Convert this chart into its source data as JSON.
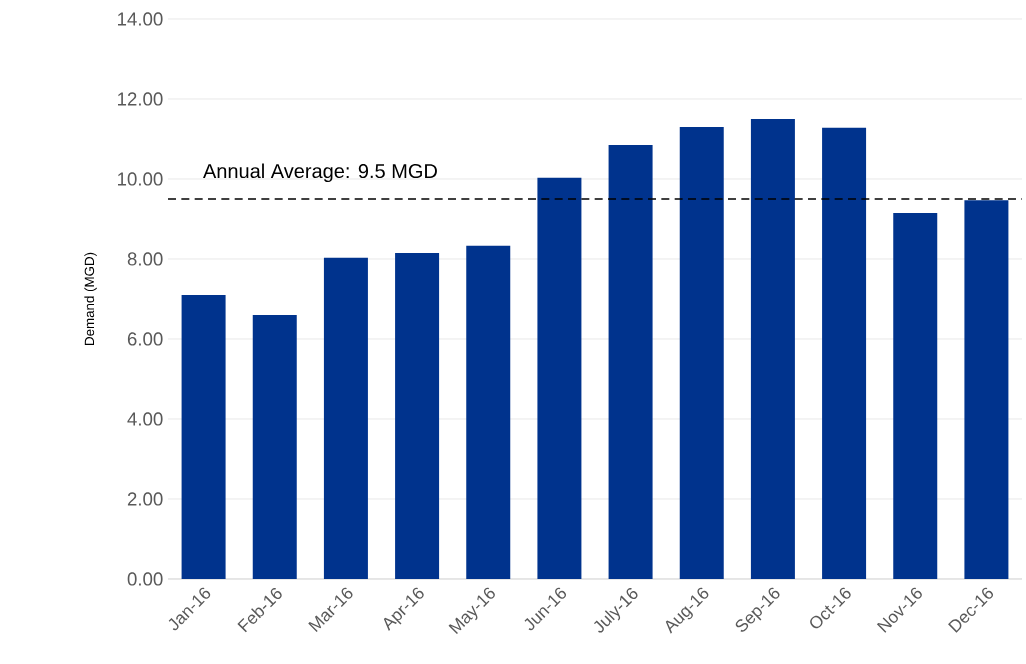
{
  "chart_data": {
    "type": "bar",
    "ylabel": "Demand (MGD)",
    "categories": [
      "Jan-16",
      "Feb-16",
      "Mar-16",
      "Apr-16",
      "May-16",
      "Jun-16",
      "July-16",
      "Aug-16",
      "Sep-16",
      "Oct-16",
      "Nov-16",
      "Dec-16"
    ],
    "values": [
      7.1,
      6.6,
      8.03,
      8.15,
      8.33,
      10.03,
      10.85,
      11.3,
      11.5,
      11.28,
      9.15,
      9.47
    ],
    "color": "#00338d",
    "ylim": [
      0,
      14
    ],
    "yticks": [
      {
        "value": 0,
        "label": "0.00"
      },
      {
        "value": 2,
        "label": "2.00"
      },
      {
        "value": 4,
        "label": "4.00"
      },
      {
        "value": 6,
        "label": "6.00"
      },
      {
        "value": 8,
        "label": "8.00"
      },
      {
        "value": 10,
        "label": "10.00"
      },
      {
        "value": 12,
        "label": "12.00"
      },
      {
        "value": 14,
        "label": "14.00"
      }
    ],
    "grid": "y",
    "ref_lines": [
      {
        "axis": "y",
        "value": 9.5,
        "label": "Annual Average: 9.5 MGD",
        "color": "#000000",
        "line_style": "dashed"
      }
    ]
  }
}
